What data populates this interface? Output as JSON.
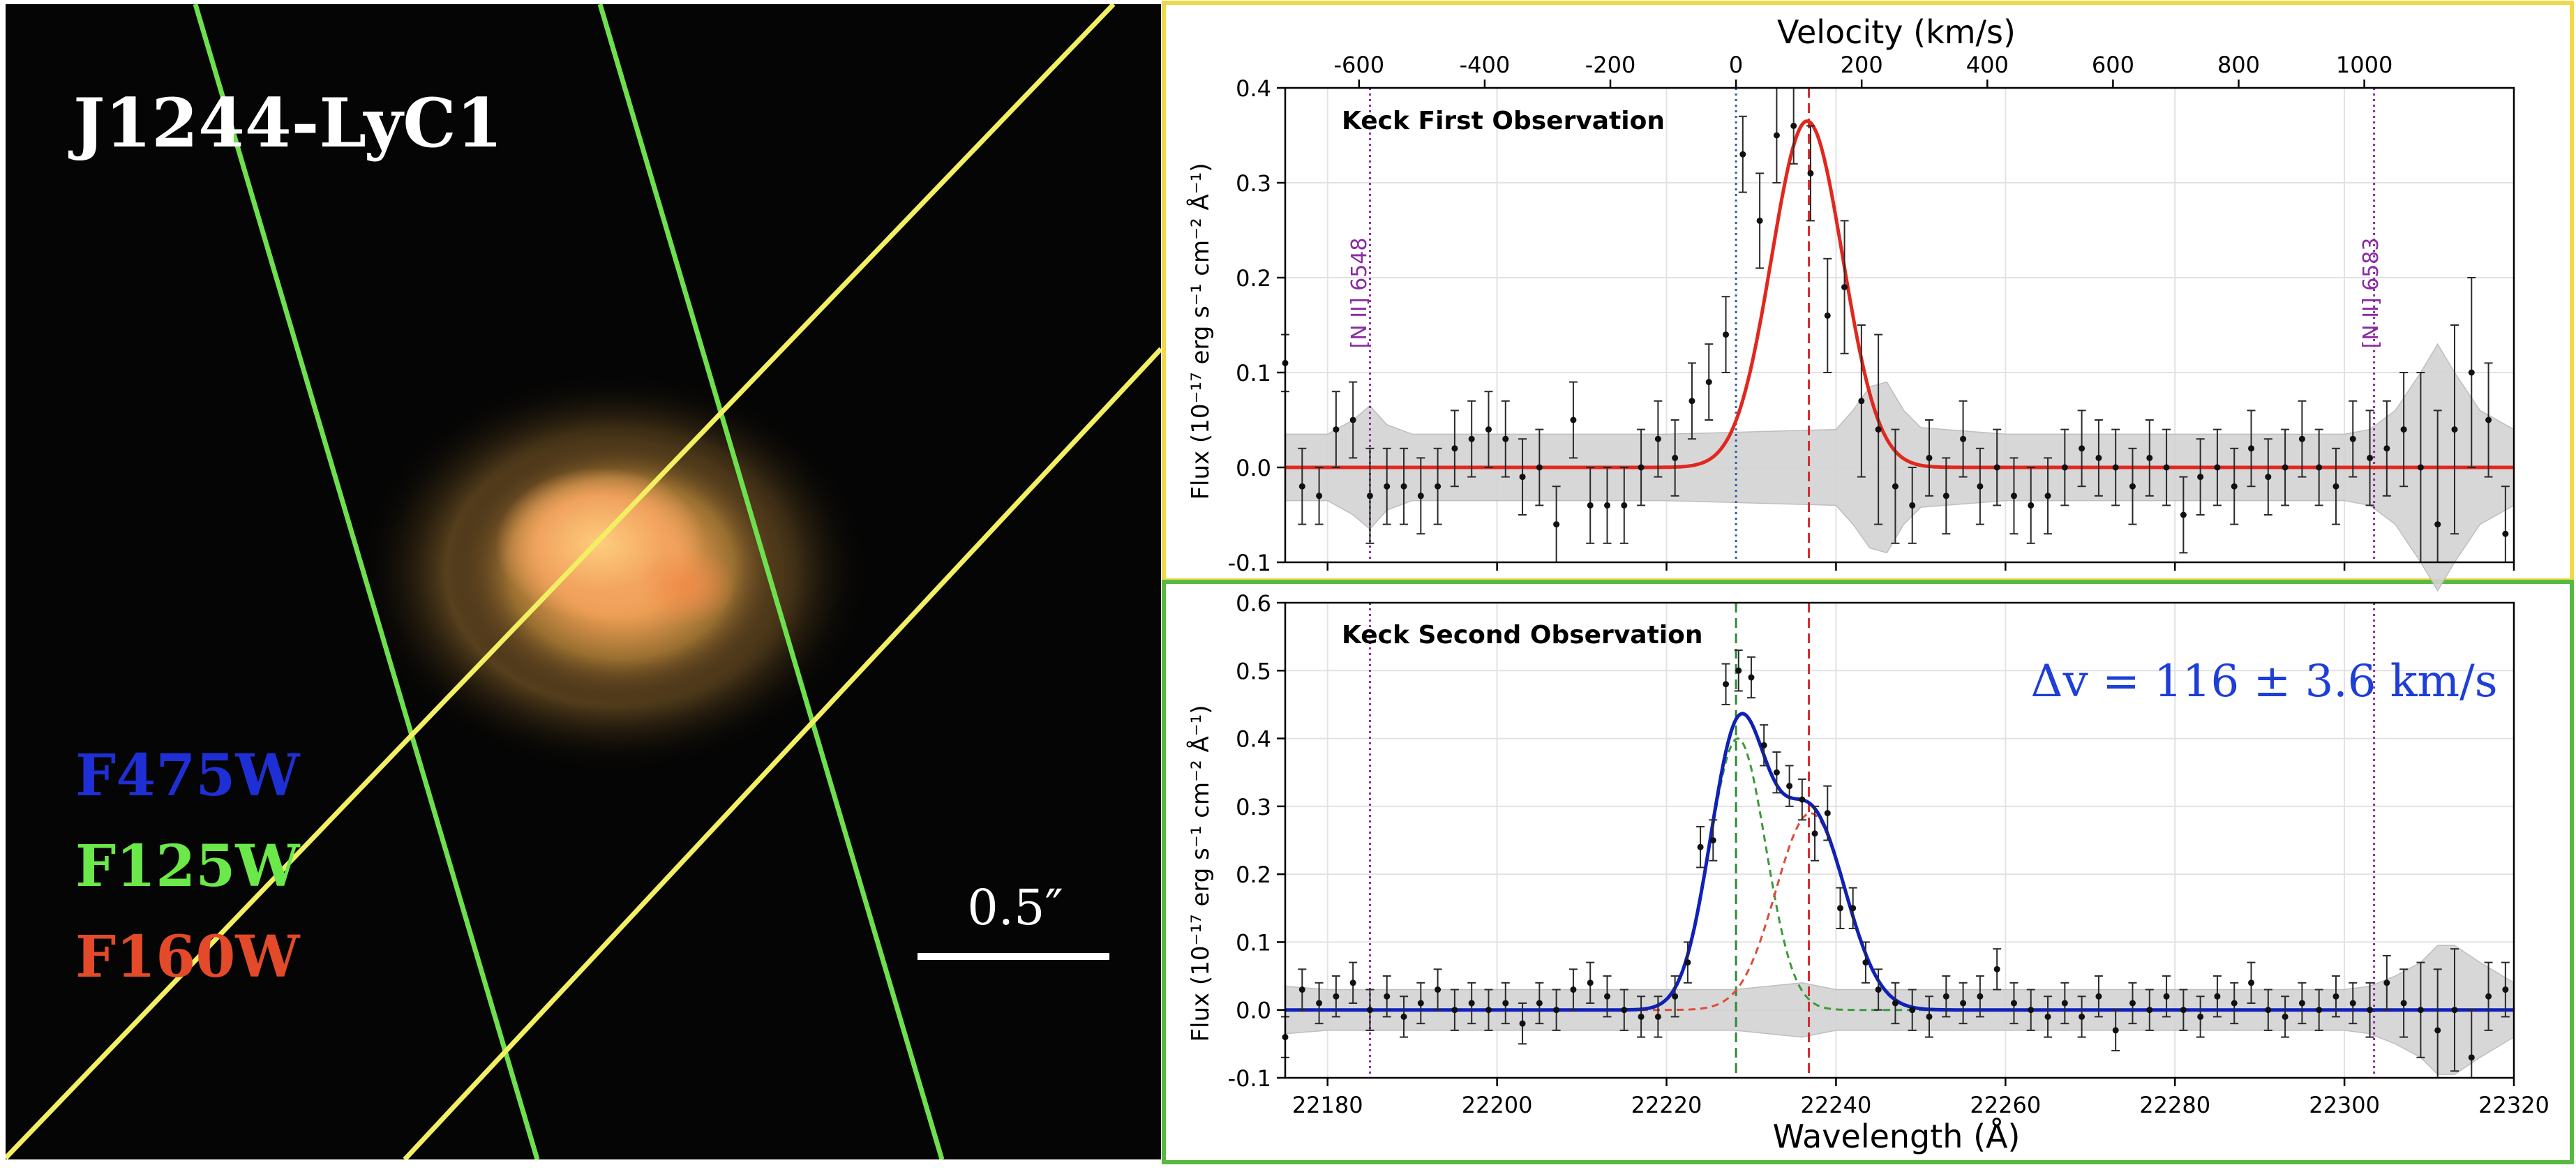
{
  "image_panel": {
    "target_name": "J1244-LyC1",
    "filters": [
      {
        "label": "F475W",
        "color": "#1f2fd6"
      },
      {
        "label": "F125W",
        "color": "#6be84a"
      },
      {
        "label": "F160W",
        "color": "#e24a2a"
      }
    ],
    "scale_bar_label": "0.5″",
    "slit_colors": {
      "green": "#6ee04e",
      "yellow": "#f2f062"
    }
  },
  "chart_data": [
    {
      "type": "line",
      "title": "Keck First Observation",
      "panel_border_color": "#f0d84a",
      "xlabel_top": "Velocity (km/s)",
      "velocity_ticks": [
        -600,
        -400,
        -200,
        0,
        200,
        400,
        600,
        800,
        1000
      ],
      "velocity_tick_labels": [
        "-600",
        "-400",
        "-200",
        "0",
        "200",
        "400",
        "600",
        "800",
        "1000"
      ],
      "ylabel": "Flux (10⁻¹⁷ erg s⁻¹ cm⁻² Å⁻¹)",
      "xlim": [
        22175,
        22320
      ],
      "ylim": [
        -0.1,
        0.4
      ],
      "yticks": [
        -0.1,
        0.0,
        0.1,
        0.2,
        0.3,
        0.4
      ],
      "ytick_labels": [
        "-0.1",
        "0.0",
        "0.1",
        "0.2",
        "0.3",
        "0.4"
      ],
      "reference_lines": [
        {
          "label": "[N II] 6548",
          "x": 22185,
          "color": "#8a2ca0",
          "style": "dotted"
        },
        {
          "label": "[N II] 6583",
          "x": 22303.5,
          "color": "#8a2ca0",
          "style": "dotted"
        },
        {
          "label": "",
          "x": 22228.2,
          "color": "#2a5fa8",
          "style": "dotted"
        },
        {
          "label": "",
          "x": 22236.8,
          "color": "#d62a2a",
          "style": "dashed"
        }
      ],
      "fits": [
        {
          "name": "Gaussian fit",
          "color": "#e0281e",
          "amplitude": 0.365,
          "center": 22236.6,
          "sigma": 4.2
        }
      ],
      "error_band": {
        "color": "#d3d3d3",
        "x": [
          22175,
          22180,
          22183,
          22185,
          22187,
          22190,
          22200,
          22220,
          22240,
          22242,
          22244,
          22246,
          22248,
          22250,
          22260,
          22300,
          22303,
          22306,
          22309,
          22311,
          22313,
          22316,
          22320
        ],
        "half_width": [
          0.035,
          0.035,
          0.05,
          0.065,
          0.045,
          0.035,
          0.035,
          0.035,
          0.04,
          0.06,
          0.085,
          0.09,
          0.06,
          0.042,
          0.035,
          0.035,
          0.04,
          0.06,
          0.1,
          0.13,
          0.1,
          0.06,
          0.04
        ]
      },
      "points": {
        "x": [
          22175,
          22177,
          22179,
          22181,
          22183,
          22185,
          22187,
          22189,
          22191,
          22193,
          22195,
          22197,
          22199,
          22201,
          22203,
          22205,
          22207,
          22209,
          22211,
          22213,
          22215,
          22217,
          22219,
          22221,
          22223,
          22225,
          22227,
          22229,
          22231,
          22233,
          22235,
          22237,
          22239,
          22241,
          22243,
          22245,
          22247,
          22249,
          22251,
          22253,
          22255,
          22257,
          22259,
          22261,
          22263,
          22265,
          22267,
          22269,
          22271,
          22273,
          22275,
          22277,
          22279,
          22281,
          22283,
          22285,
          22287,
          22289,
          22291,
          22293,
          22295,
          22297,
          22299,
          22301,
          22303,
          22305,
          22307,
          22309,
          22311,
          22313,
          22315,
          22317,
          22319
        ],
        "y": [
          0.11,
          -0.02,
          -0.03,
          0.04,
          0.05,
          -0.03,
          -0.02,
          -0.02,
          -0.03,
          -0.02,
          0.02,
          0.03,
          0.04,
          0.03,
          -0.01,
          0.0,
          -0.06,
          0.05,
          -0.04,
          -0.04,
          -0.04,
          0.0,
          0.03,
          0.01,
          0.07,
          0.09,
          0.14,
          0.33,
          0.26,
          0.35,
          0.36,
          0.31,
          0.16,
          0.19,
          0.07,
          0.04,
          -0.02,
          -0.04,
          0.01,
          -0.03,
          0.03,
          -0.02,
          0.0,
          -0.03,
          -0.04,
          -0.03,
          0.0,
          0.02,
          0.01,
          0.0,
          -0.02,
          0.01,
          0.0,
          -0.05,
          -0.01,
          0.0,
          -0.02,
          0.02,
          -0.01,
          0.0,
          0.03,
          0.0,
          -0.02,
          0.03,
          0.01,
          0.02,
          0.04,
          0.0,
          -0.06,
          0.04,
          0.1,
          0.05,
          -0.07
        ],
        "err": [
          0.03,
          0.04,
          0.03,
          0.04,
          0.04,
          0.05,
          0.04,
          0.04,
          0.04,
          0.04,
          0.04,
          0.04,
          0.04,
          0.04,
          0.04,
          0.04,
          0.04,
          0.04,
          0.04,
          0.04,
          0.04,
          0.04,
          0.04,
          0.04,
          0.04,
          0.04,
          0.04,
          0.04,
          0.05,
          0.05,
          0.04,
          0.05,
          0.06,
          0.07,
          0.08,
          0.1,
          0.06,
          0.04,
          0.04,
          0.04,
          0.04,
          0.04,
          0.04,
          0.04,
          0.04,
          0.04,
          0.04,
          0.04,
          0.04,
          0.04,
          0.04,
          0.04,
          0.04,
          0.04,
          0.04,
          0.04,
          0.04,
          0.04,
          0.04,
          0.04,
          0.04,
          0.04,
          0.04,
          0.04,
          0.05,
          0.05,
          0.06,
          0.1,
          0.12,
          0.11,
          0.1,
          0.06,
          0.05
        ]
      }
    },
    {
      "type": "line",
      "title": "Keck Second Observation",
      "panel_border_color": "#58b840",
      "annotation": "Δv = 116 ± 3.6 km/s",
      "annotation_color": "#1e3ed8",
      "xlabel": "Wavelength (Å)",
      "ylabel": "Flux (10⁻¹⁷ erg s⁻¹ cm⁻² Å⁻¹)",
      "xlim": [
        22175,
        22320
      ],
      "ylim": [
        -0.1,
        0.6
      ],
      "xticks": [
        22180,
        22200,
        22220,
        22240,
        22260,
        22280,
        22300,
        22320
      ],
      "xtick_labels": [
        "22180",
        "22200",
        "22220",
        "22240",
        "22260",
        "22280",
        "22300",
        "22320"
      ],
      "yticks": [
        -0.1,
        0.0,
        0.1,
        0.2,
        0.3,
        0.4,
        0.5,
        0.6
      ],
      "ytick_labels": [
        "-0.1",
        "0.0",
        "0.1",
        "0.2",
        "0.3",
        "0.4",
        "0.5",
        "0.6"
      ],
      "reference_lines": [
        {
          "label": "",
          "x": 22185,
          "color": "#8a2ca0",
          "style": "dotted"
        },
        {
          "label": "",
          "x": 22303.5,
          "color": "#8a2ca0",
          "style": "dotted"
        },
        {
          "label": "",
          "x": 22228.2,
          "color": "#2f8a3a",
          "style": "dashed"
        },
        {
          "label": "",
          "x": 22236.8,
          "color": "#d62a2a",
          "style": "dashed"
        }
      ],
      "fits": [
        {
          "name": "component 1",
          "color": "#3a9a3a",
          "amplitude": 0.4,
          "center": 22228.4,
          "sigma": 3.3,
          "style": "dashed"
        },
        {
          "name": "component 2",
          "color": "#e04a38",
          "amplitude": 0.29,
          "center": 22237.0,
          "sigma": 4.1,
          "style": "dashed"
        },
        {
          "name": "total fit",
          "color": "#1020b8",
          "style": "solid",
          "sum_of": [
            0,
            1
          ]
        }
      ],
      "error_band": {
        "color": "#d3d3d3",
        "x": [
          22175,
          22180,
          22185,
          22190,
          22200,
          22220,
          22228,
          22232,
          22236,
          22240,
          22245,
          22250,
          22260,
          22300,
          22303,
          22306,
          22309,
          22311,
          22313,
          22316,
          22320
        ],
        "half_width": [
          0.035,
          0.03,
          0.03,
          0.03,
          0.03,
          0.03,
          0.03,
          0.035,
          0.04,
          0.03,
          0.03,
          0.03,
          0.03,
          0.03,
          0.035,
          0.05,
          0.07,
          0.095,
          0.095,
          0.07,
          0.04
        ]
      },
      "points": {
        "x": [
          22175,
          22177,
          22179,
          22181,
          22183,
          22185,
          22187,
          22189,
          22191,
          22193,
          22195,
          22197,
          22199,
          22201,
          22203,
          22205,
          22207,
          22209,
          22211,
          22213,
          22215,
          22217,
          22219,
          22221,
          22222.5,
          22224,
          22225.5,
          22227,
          22228.5,
          22230,
          22231.5,
          22233,
          22234.5,
          22236,
          22237.5,
          22239,
          22240.5,
          22242,
          22243.5,
          22245,
          22247,
          22249,
          22251,
          22253,
          22255,
          22257,
          22259,
          22261,
          22263,
          22265,
          22267,
          22269,
          22271,
          22273,
          22275,
          22277,
          22279,
          22281,
          22283,
          22285,
          22287,
          22289,
          22291,
          22293,
          22295,
          22297,
          22299,
          22301,
          22303,
          22305,
          22307,
          22309,
          22311,
          22313,
          22315,
          22317,
          22319
        ],
        "y": [
          -0.04,
          0.03,
          0.01,
          0.02,
          0.04,
          0.0,
          0.02,
          -0.01,
          0.01,
          0.03,
          0.0,
          0.01,
          0.0,
          0.01,
          -0.02,
          0.01,
          0.0,
          0.03,
          0.04,
          0.02,
          0.0,
          -0.01,
          -0.01,
          0.02,
          0.07,
          0.24,
          0.25,
          0.48,
          0.5,
          0.49,
          0.39,
          0.35,
          0.33,
          0.31,
          0.26,
          0.29,
          0.15,
          0.15,
          0.07,
          0.03,
          0.01,
          0.0,
          -0.01,
          0.02,
          0.01,
          0.02,
          0.06,
          0.01,
          0.0,
          -0.01,
          0.01,
          -0.01,
          0.02,
          -0.03,
          0.01,
          0.0,
          0.02,
          0.0,
          -0.01,
          0.02,
          0.01,
          0.04,
          0.0,
          -0.01,
          0.01,
          0.0,
          0.02,
          0.01,
          0.0,
          0.04,
          0.01,
          0.0,
          -0.03,
          0.0,
          -0.07,
          0.02,
          0.03
        ],
        "err": [
          0.03,
          0.03,
          0.03,
          0.03,
          0.03,
          0.03,
          0.03,
          0.03,
          0.03,
          0.03,
          0.03,
          0.03,
          0.03,
          0.03,
          0.03,
          0.03,
          0.03,
          0.03,
          0.03,
          0.03,
          0.03,
          0.03,
          0.03,
          0.03,
          0.03,
          0.03,
          0.03,
          0.03,
          0.03,
          0.03,
          0.03,
          0.03,
          0.03,
          0.03,
          0.04,
          0.04,
          0.03,
          0.03,
          0.03,
          0.03,
          0.03,
          0.03,
          0.03,
          0.03,
          0.03,
          0.03,
          0.03,
          0.03,
          0.03,
          0.03,
          0.03,
          0.03,
          0.03,
          0.03,
          0.03,
          0.03,
          0.03,
          0.03,
          0.03,
          0.03,
          0.03,
          0.03,
          0.03,
          0.03,
          0.03,
          0.03,
          0.03,
          0.03,
          0.04,
          0.04,
          0.05,
          0.07,
          0.09,
          0.09,
          0.07,
          0.05,
          0.04
        ]
      }
    }
  ]
}
